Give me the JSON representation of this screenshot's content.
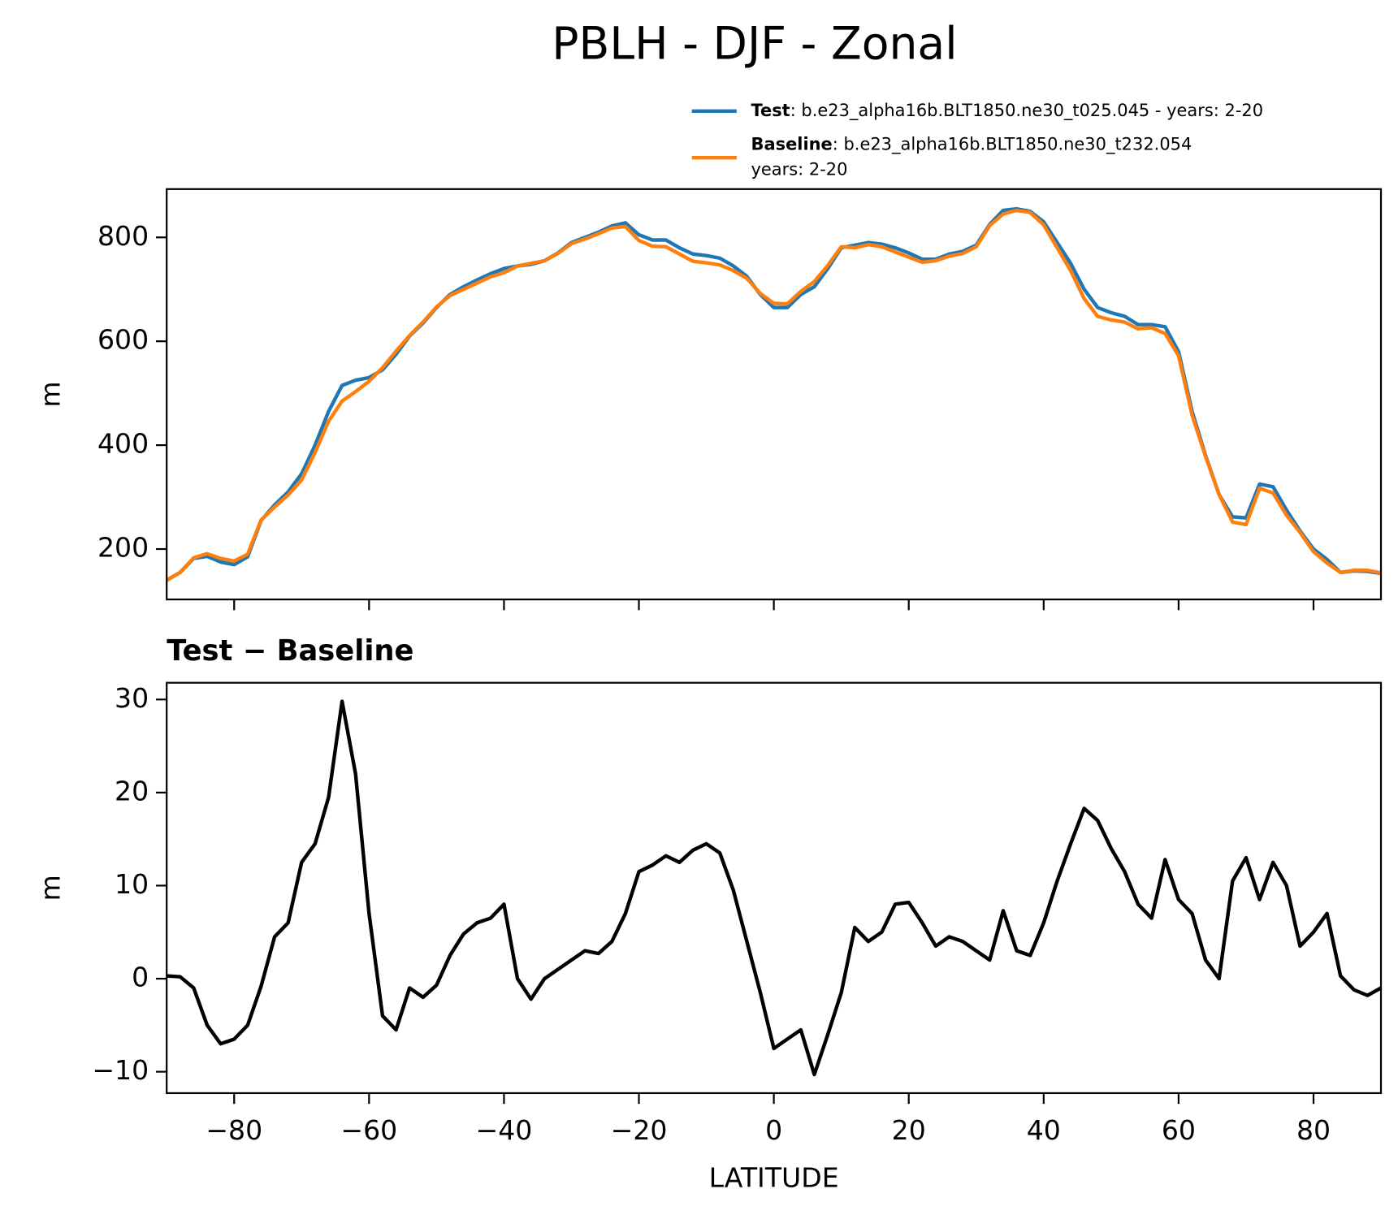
{
  "title": "PBLH - DJF - Zonal",
  "chart_data": [
    {
      "type": "line",
      "ylabel": "m",
      "x": [
        -90,
        -88,
        -86,
        -84,
        -82,
        -80,
        -78,
        -76,
        -74,
        -72,
        -70,
        -68,
        -66,
        -64,
        -62,
        -60,
        -58,
        -56,
        -54,
        -52,
        -50,
        -48,
        -46,
        -44,
        -42,
        -40,
        -38,
        -36,
        -34,
        -32,
        -30,
        -28,
        -26,
        -24,
        -22,
        -20,
        -18,
        -16,
        -14,
        -12,
        -10,
        -8,
        -6,
        -4,
        -2,
        0,
        2,
        4,
        6,
        8,
        10,
        12,
        14,
        16,
        18,
        20,
        22,
        24,
        26,
        28,
        30,
        32,
        34,
        36,
        38,
        40,
        42,
        44,
        46,
        48,
        50,
        52,
        54,
        56,
        58,
        60,
        62,
        64,
        66,
        68,
        70,
        72,
        74,
        76,
        78,
        80,
        82,
        84,
        86,
        88,
        90
      ],
      "series": [
        {
          "name": "Test",
          "label": [
            ": b.e23_alpha16b.BLT1850.ne30_t025.045 - years: 2-20"
          ],
          "color": "#1f77b4",
          "values": [
            140,
            155,
            182,
            186,
            175,
            170,
            185,
            255,
            285,
            310,
            345,
            400,
            465,
            515,
            525,
            530,
            545,
            575,
            610,
            635,
            665,
            690,
            705,
            718,
            730,
            740,
            745,
            748,
            755,
            770,
            790,
            800,
            810,
            822,
            828,
            805,
            795,
            795,
            780,
            768,
            765,
            760,
            745,
            725,
            690,
            665,
            665,
            690,
            705,
            740,
            780,
            785,
            790,
            787,
            780,
            770,
            758,
            758,
            768,
            773,
            785,
            825,
            852,
            855,
            850,
            830,
            790,
            750,
            700,
            665,
            655,
            648,
            632,
            632,
            628,
            580,
            465,
            380,
            305,
            262,
            260,
            325,
            320,
            275,
            235,
            200,
            180,
            155,
            158,
            157,
            153
          ]
        },
        {
          "name": "Baseline",
          "label": [
            ": b.e23_alpha16b.BLT1850.ne30_t232.054",
            "years: 2-20"
          ],
          "color": "#ff7f0e",
          "values": [
            140,
            155,
            183,
            191,
            182,
            177,
            190,
            256,
            281,
            304,
            333,
            386,
            446,
            485,
            503,
            523,
            549,
            581,
            611,
            637,
            666,
            688,
            700,
            712,
            724,
            732,
            745,
            750,
            755,
            769,
            788,
            797,
            807,
            818,
            821,
            794,
            783,
            782,
            768,
            754,
            751,
            747,
            736,
            721,
            692,
            673,
            672,
            696,
            715,
            746,
            782,
            780,
            786,
            782,
            772,
            762,
            752,
            755,
            764,
            769,
            782,
            823,
            845,
            852,
            848,
            824,
            780,
            736,
            682,
            648,
            641,
            637,
            624,
            626,
            615,
            572,
            458,
            378,
            305,
            252,
            247,
            317,
            308,
            265,
            232,
            195,
            173,
            155,
            159,
            159,
            154
          ]
        }
      ],
      "xlim": [
        -90,
        90
      ],
      "xticks": [
        -80,
        -60,
        -40,
        -20,
        0,
        20,
        40,
        60,
        80
      ],
      "ylim": [
        103,
        893
      ],
      "yticks": [
        200,
        400,
        600,
        800
      ]
    },
    {
      "type": "line",
      "title": [
        "Test",
        "Baseline"
      ],
      "ylabel": "m",
      "xlabel": "LATITUDE",
      "x": [
        -90,
        -88,
        -86,
        -84,
        -82,
        -80,
        -78,
        -76,
        -74,
        -72,
        -70,
        -68,
        -66,
        -64,
        -62,
        -60,
        -58,
        -56,
        -54,
        -52,
        -50,
        -48,
        -46,
        -44,
        -42,
        -40,
        -38,
        -36,
        -34,
        -32,
        -30,
        -28,
        -26,
        -24,
        -22,
        -20,
        -18,
        -16,
        -14,
        -12,
        -10,
        -8,
        -6,
        -4,
        -2,
        0,
        2,
        4,
        6,
        8,
        10,
        12,
        14,
        16,
        18,
        20,
        22,
        24,
        26,
        28,
        30,
        32,
        34,
        36,
        38,
        40,
        42,
        44,
        46,
        48,
        50,
        52,
        54,
        56,
        58,
        60,
        62,
        64,
        66,
        68,
        70,
        72,
        74,
        76,
        78,
        80,
        82,
        84,
        86,
        88,
        90
      ],
      "series": [
        {
          "color": "#000000",
          "values": [
            0.3,
            0.2,
            -1,
            -5,
            -7,
            -6.5,
            -5,
            -0.8,
            4.5,
            6,
            12.5,
            14.5,
            19.5,
            29.8,
            22,
            7,
            -4,
            -5.5,
            -1,
            -2,
            -0.7,
            2.5,
            4.8,
            6,
            6.5,
            8,
            0,
            -2.2,
            0,
            1,
            2,
            3,
            2.7,
            4,
            7,
            11.5,
            12.2,
            13.2,
            12.5,
            13.8,
            14.5,
            13.5,
            9.5,
            4,
            -1.5,
            -7.5,
            -6.5,
            -5.5,
            -10.3,
            -6,
            -1.5,
            5.5,
            4,
            5,
            8,
            8.2,
            6,
            3.5,
            4.5,
            4,
            3,
            2,
            7.3,
            3,
            2.5,
            6,
            10.5,
            14.5,
            18.3,
            17,
            14,
            11.5,
            8,
            6.5,
            12.8,
            8.5,
            7,
            2,
            0,
            10.5,
            13,
            8.5,
            12.5,
            10,
            3.5,
            5,
            7,
            0.3,
            -1.2,
            -1.8,
            -1
          ]
        }
      ],
      "xlim": [
        -90,
        90
      ],
      "xticks": [
        {
          "value": -80,
          "label": "−80"
        },
        {
          "value": -60,
          "label": "−60"
        },
        {
          "value": -40,
          "label": "−40"
        },
        {
          "value": -20,
          "label": "−20"
        },
        0,
        20,
        40,
        60,
        80
      ],
      "ylim": [
        -12.3,
        31.8
      ],
      "yticks": [
        {
          "value": -10,
          "label": "−10"
        },
        0,
        10,
        20,
        30
      ]
    }
  ]
}
